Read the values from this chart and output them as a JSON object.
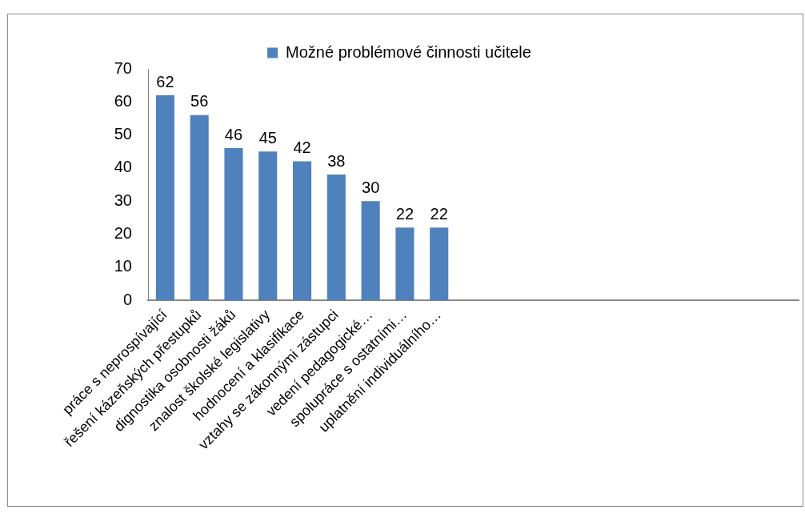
{
  "chart_data": {
    "type": "bar",
    "categories": [
      "práce s neprospívající",
      "řešení kázeňských přestupků",
      "dignostika osobnosti žáků",
      "znalost školské legislativy",
      "hodnocení a klasifikace",
      "vztahy se zákonnými zástupci",
      "vedení pedagogické…",
      "spolupráce s ostatními…",
      "uplatnění individuálního…",
      null,
      null,
      null,
      null,
      null,
      null,
      null,
      null,
      null,
      null
    ],
    "series": [
      {
        "name": "Možné problémové činnosti učitele",
        "color": "#4f81bd",
        "values": [
          62,
          56,
          46,
          45,
          42,
          38,
          30,
          22,
          22,
          null,
          null,
          null,
          null,
          null,
          null,
          null,
          null,
          null,
          null
        ]
      }
    ],
    "ylim": [
      0,
      70
    ],
    "yticks": [
      0,
      10,
      20,
      30,
      40,
      50,
      60,
      70
    ],
    "grid": false,
    "legend": "top",
    "data_labels": true
  }
}
